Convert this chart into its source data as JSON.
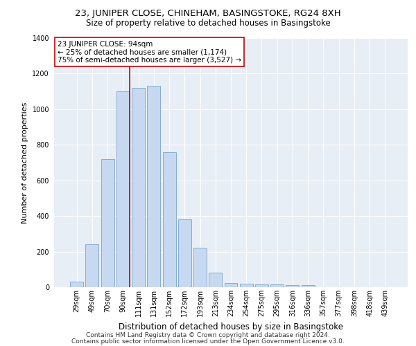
{
  "title": "23, JUNIPER CLOSE, CHINEHAM, BASINGSTOKE, RG24 8XH",
  "subtitle": "Size of property relative to detached houses in Basingstoke",
  "xlabel": "Distribution of detached houses by size in Basingstoke",
  "ylabel": "Number of detached properties",
  "categories": [
    "29sqm",
    "49sqm",
    "70sqm",
    "90sqm",
    "111sqm",
    "131sqm",
    "152sqm",
    "172sqm",
    "193sqm",
    "213sqm",
    "234sqm",
    "254sqm",
    "275sqm",
    "295sqm",
    "316sqm",
    "336sqm",
    "357sqm",
    "377sqm",
    "398sqm",
    "418sqm",
    "439sqm"
  ],
  "values": [
    30,
    240,
    720,
    1100,
    1120,
    1130,
    760,
    380,
    220,
    80,
    25,
    20,
    15,
    15,
    10,
    10,
    0,
    0,
    0,
    0,
    0
  ],
  "bar_color": "#c6d9f0",
  "bar_edge_color": "#7aa3cc",
  "vline_color": "#cc0000",
  "annotation_text": "23 JUNIPER CLOSE: 94sqm\n← 25% of detached houses are smaller (1,174)\n75% of semi-detached houses are larger (3,527) →",
  "annotation_box_color": "#ffffff",
  "annotation_box_edge": "#cc0000",
  "ylim": [
    0,
    1400
  ],
  "yticks": [
    0,
    200,
    400,
    600,
    800,
    1000,
    1200,
    1400
  ],
  "background_color": "#e8eef5",
  "footer1": "Contains HM Land Registry data © Crown copyright and database right 2024.",
  "footer2": "Contains public sector information licensed under the Open Government Licence v3.0.",
  "title_fontsize": 9.5,
  "subtitle_fontsize": 8.5,
  "xlabel_fontsize": 8.5,
  "ylabel_fontsize": 8,
  "tick_fontsize": 7,
  "footer_fontsize": 6.5,
  "annotation_fontsize": 7.5
}
